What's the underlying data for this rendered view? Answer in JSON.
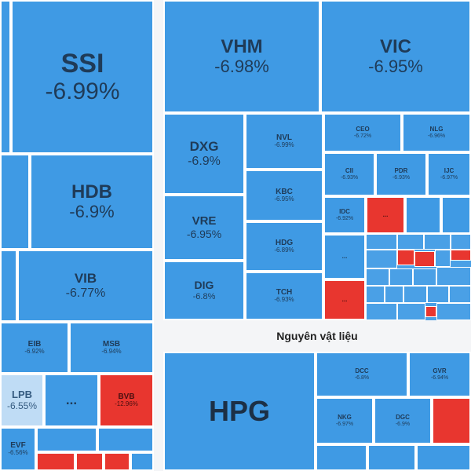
{
  "chart_data": {
    "type": "treemap",
    "sectors": [
      {
        "name": "",
        "tiles": [
          {
            "ticker": "SSI",
            "change": "-6.99%"
          },
          {
            "ticker": "HDB",
            "change": "-6.9%"
          },
          {
            "ticker": "VIB",
            "change": "-6.77%"
          },
          {
            "ticker": "EIB",
            "change": "-6.92%"
          },
          {
            "ticker": "MSB",
            "change": "-6.94%"
          },
          {
            "ticker": "LPB",
            "change": "-6.55%"
          },
          {
            "ticker": "BVB",
            "change": "-12.96%"
          },
          {
            "ticker": "EVF",
            "change": "-6.56%"
          }
        ]
      },
      {
        "name": "",
        "tiles": [
          {
            "ticker": "VHM",
            "change": "-6.98%"
          },
          {
            "ticker": "VIC",
            "change": "-6.95%"
          },
          {
            "ticker": "DXG",
            "change": "-6.9%"
          },
          {
            "ticker": "VRE",
            "change": "-6.95%"
          },
          {
            "ticker": "DIG",
            "change": "-6.8%"
          },
          {
            "ticker": "NVL",
            "change": "-6.99%"
          },
          {
            "ticker": "KBC",
            "change": "-6.95%"
          },
          {
            "ticker": "HDG",
            "change": "-6.89%"
          },
          {
            "ticker": "TCH",
            "change": "-6.93%"
          },
          {
            "ticker": "CEO",
            "change": "-6.72%"
          },
          {
            "ticker": "NLG",
            "change": "-6.96%"
          },
          {
            "ticker": "CII",
            "change": "-6.93%"
          },
          {
            "ticker": "PDR",
            "change": "-6.93%"
          },
          {
            "ticker": "IJC",
            "change": "-6.97%"
          },
          {
            "ticker": "IDC",
            "change": "-6.92%"
          }
        ]
      },
      {
        "name": "Nguyên vật liệu",
        "tiles": [
          {
            "ticker": "HPG",
            "change": ""
          },
          {
            "ticker": "DCC",
            "change": "-6.8%"
          },
          {
            "ticker": "GVR",
            "change": "-6.94%"
          },
          {
            "ticker": "NKG",
            "change": "-6.97%"
          },
          {
            "ticker": "DGC",
            "change": "-6.9%"
          }
        ]
      }
    ],
    "ellipsis": "...",
    "colors": {
      "down": "#3f9ae4",
      "floor": "#e8362f",
      "light": "#bfdcf5"
    }
  }
}
